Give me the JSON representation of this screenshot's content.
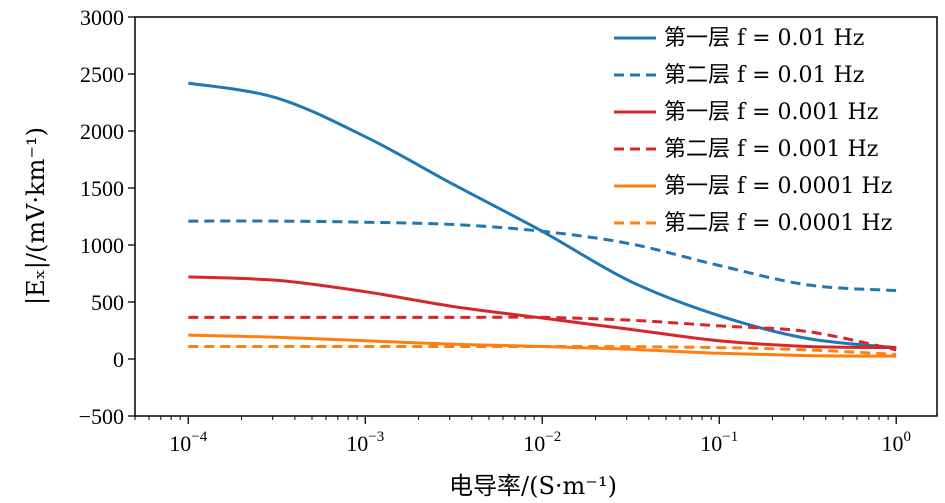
{
  "chart_data": {
    "type": "line",
    "x_scale": "log",
    "xlim": [
      5e-05,
      1.7
    ],
    "ylim": [
      -500,
      3000
    ],
    "xlabel": "电导率/(S·m⁻¹)",
    "ylabel": "|Eₓ|/(mV·km⁻¹)",
    "x_ticks": [
      {
        "value": 0.0001,
        "label_base": "10",
        "label_exp": "−4"
      },
      {
        "value": 0.001,
        "label_base": "10",
        "label_exp": "−3"
      },
      {
        "value": 0.01,
        "label_base": "10",
        "label_exp": "−2"
      },
      {
        "value": 0.1,
        "label_base": "10",
        "label_exp": "−1"
      },
      {
        "value": 1,
        "label_base": "10",
        "label_exp": "0"
      }
    ],
    "y_ticks": [
      {
        "value": 3000,
        "label": "3000"
      },
      {
        "value": 2500,
        "label": "2500"
      },
      {
        "value": 2000,
        "label": "2000"
      },
      {
        "value": 1500,
        "label": "1500"
      },
      {
        "value": 1000,
        "label": "1000"
      },
      {
        "value": 500,
        "label": "500"
      },
      {
        "value": 0,
        "label": "0"
      },
      {
        "value": -500,
        "label": "−500"
      }
    ],
    "grid": false,
    "legend_position": "top-right",
    "series": [
      {
        "name": "第一层 f = 0.01 Hz",
        "color": "#1f77b4",
        "dash": "solid",
        "x": [
          0.0001,
          0.000316,
          0.001,
          0.00316,
          0.01,
          0.0316,
          0.1,
          0.316,
          1
        ],
        "y": [
          2420,
          2290,
          1950,
          1530,
          1120,
          680,
          380,
          180,
          100
        ]
      },
      {
        "name": "第二层 f = 0.01 Hz",
        "color": "#1f77b4",
        "dash": "dashed",
        "x": [
          0.0001,
          0.000316,
          0.001,
          0.00316,
          0.01,
          0.0316,
          0.1,
          0.316,
          1
        ],
        "y": [
          1210,
          1210,
          1200,
          1180,
          1120,
          1010,
          820,
          650,
          600
        ]
      },
      {
        "name": "第一层 f = 0.001 Hz",
        "color": "#d62728",
        "dash": "solid",
        "x": [
          0.0001,
          0.000316,
          0.001,
          0.00316,
          0.01,
          0.0316,
          0.1,
          0.316,
          1
        ],
        "y": [
          720,
          690,
          590,
          460,
          360,
          260,
          160,
          110,
          100
        ]
      },
      {
        "name": "第二层 f = 0.001 Hz",
        "color": "#d62728",
        "dash": "dashed",
        "x": [
          0.0001,
          0.000316,
          0.001,
          0.00316,
          0.01,
          0.0316,
          0.1,
          0.316,
          1
        ],
        "y": [
          365,
          365,
          365,
          365,
          365,
          340,
          290,
          240,
          80
        ]
      },
      {
        "name": "第一层 f = 0.0001 Hz",
        "color": "#ff7f0e",
        "dash": "solid",
        "x": [
          0.0001,
          0.000316,
          0.001,
          0.00316,
          0.01,
          0.0316,
          0.1,
          0.316,
          1
        ],
        "y": [
          210,
          190,
          160,
          130,
          110,
          85,
          50,
          30,
          25
        ]
      },
      {
        "name": "第二层 f = 0.0001 Hz",
        "color": "#ff7f0e",
        "dash": "dashed",
        "x": [
          0.0001,
          0.000316,
          0.001,
          0.00316,
          0.01,
          0.0316,
          0.1,
          0.316,
          1
        ],
        "y": [
          110,
          110,
          110,
          110,
          110,
          108,
          100,
          80,
          40
        ]
      }
    ]
  }
}
